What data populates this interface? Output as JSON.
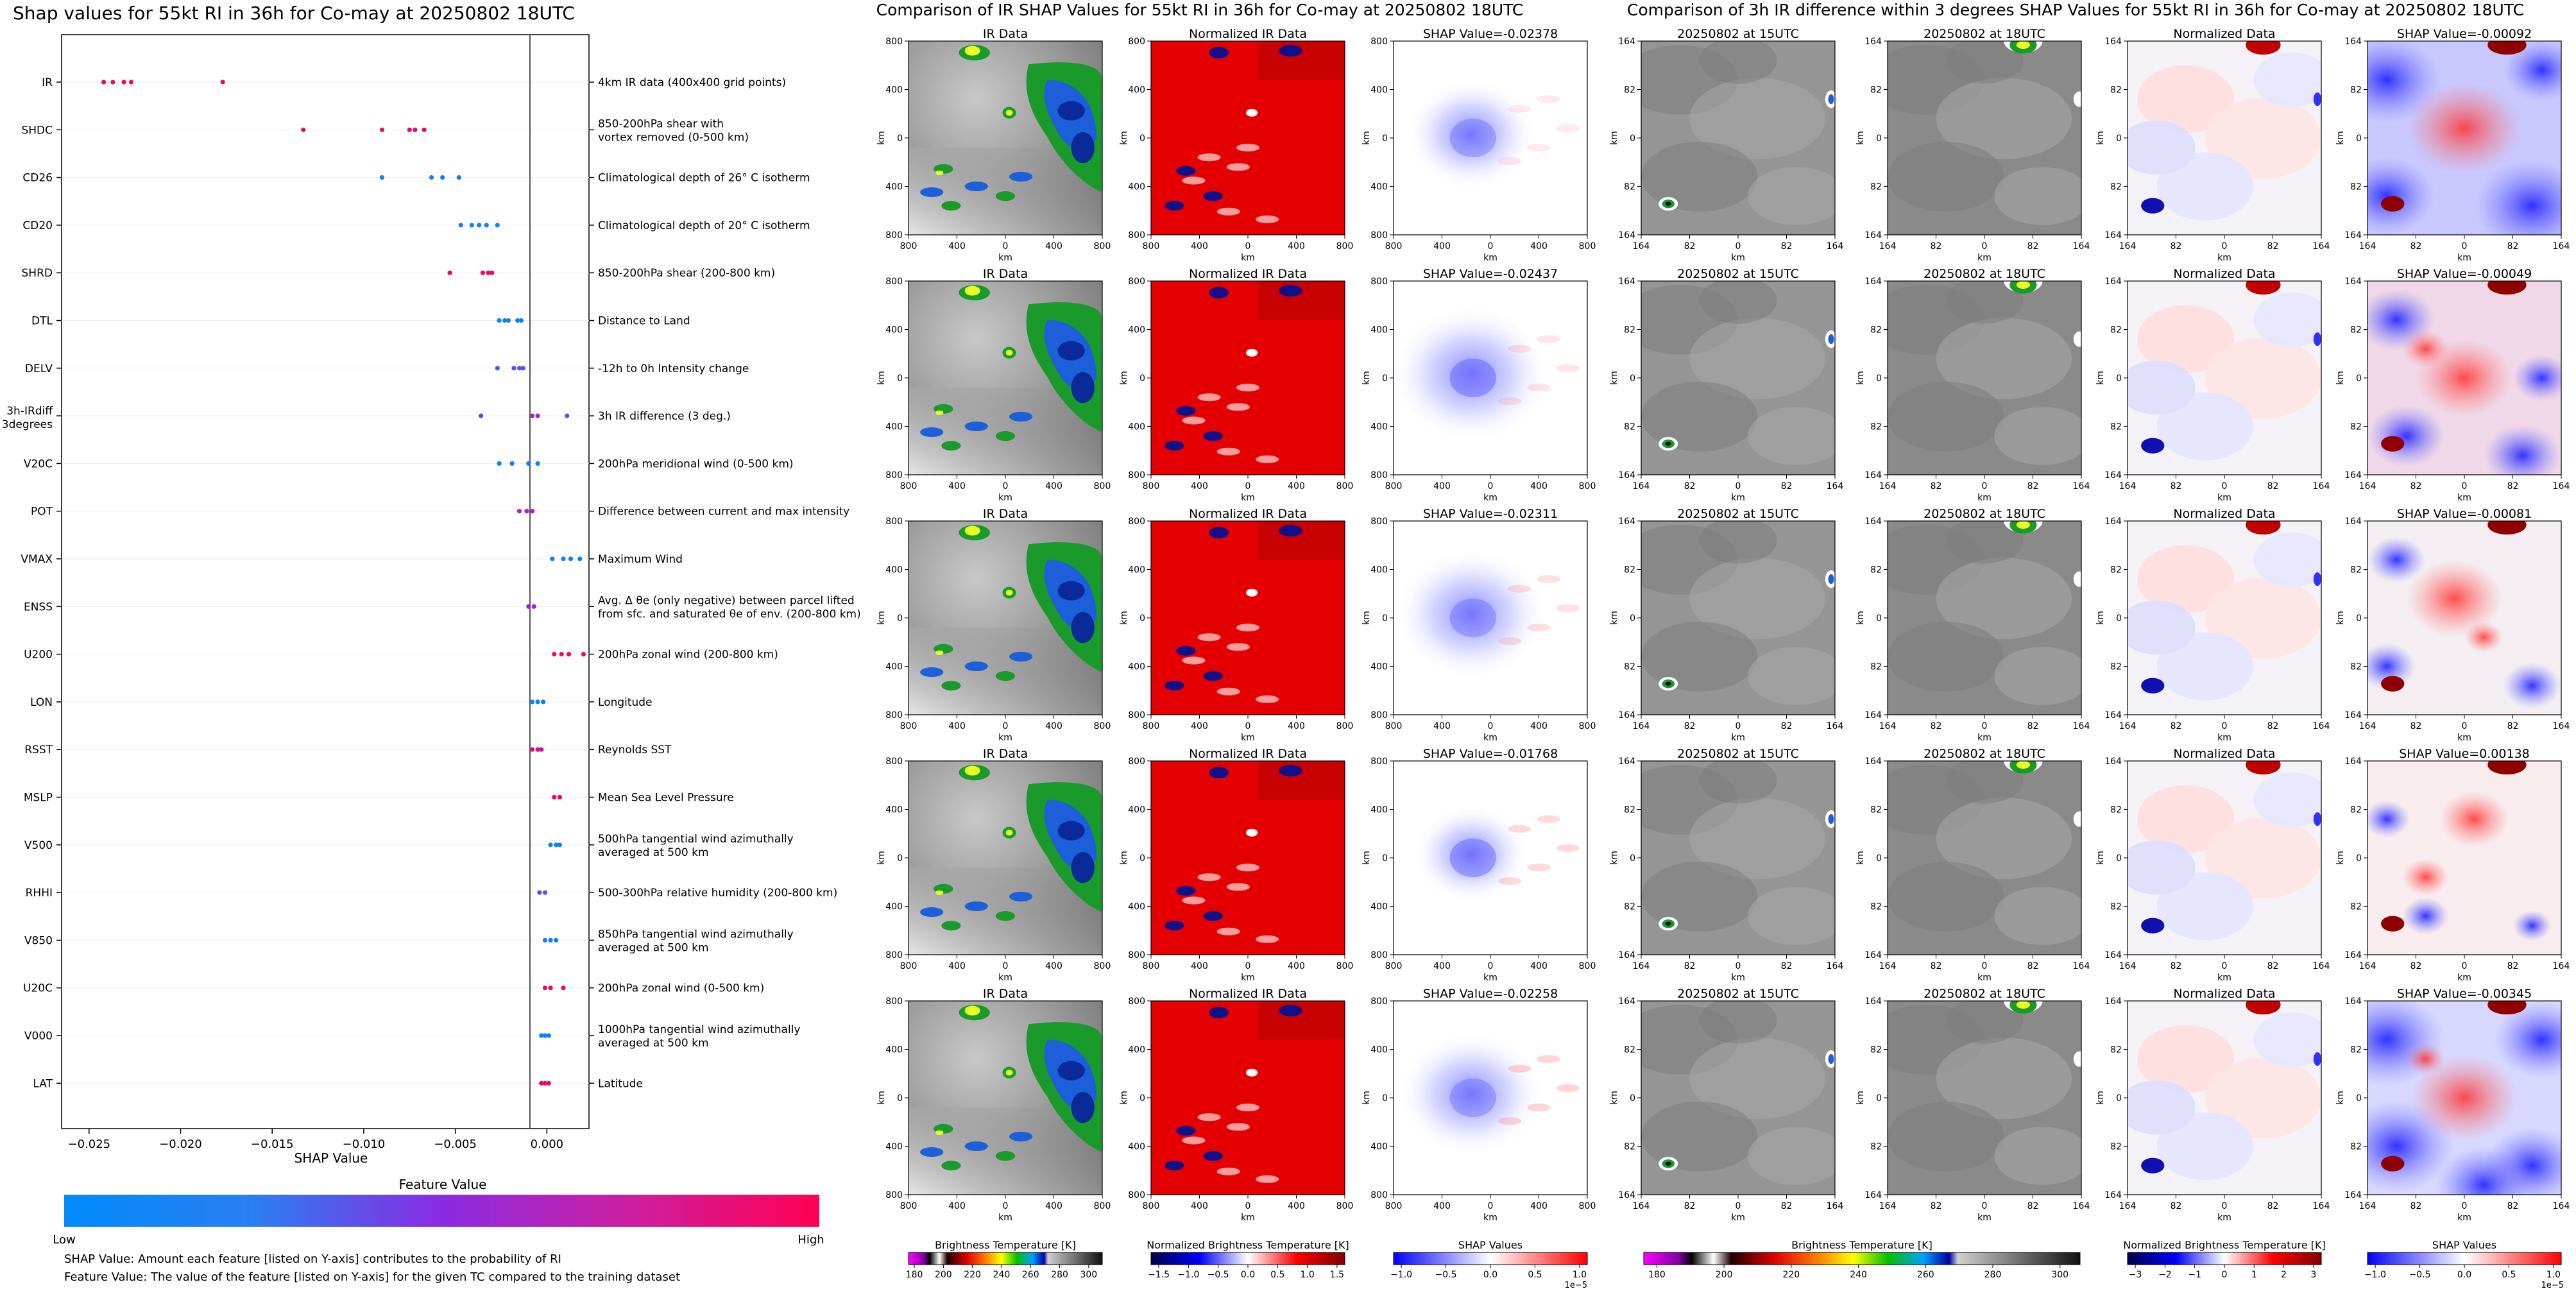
{
  "shap_summary": {
    "title": "Shap values for 55kt RI in 36h for Co-may at 20250802 18UTC",
    "xlabel": "SHAP Value",
    "xticks": [
      "−0.025",
      "−0.020",
      "−0.015",
      "−0.010",
      "−0.005",
      "0.000"
    ],
    "colorbar_title": "Feature Value",
    "colorbar_low": "Low",
    "colorbar_high": "High",
    "colors": {
      "low": "#008afb",
      "mid": "#8a2be2",
      "high": "#ff0052"
    },
    "note1": "SHAP Value: Amount each feature [listed on Y-axis] contributes to the probability of RI",
    "note2": "Feature Value: The value of the feature [listed on Y-axis] for the given TC compared to the training dataset"
  },
  "chart_data": {
    "type": "scatter",
    "title": "Shap values for 55kt RI in 36h for Co-may at 20250802 18UTC",
    "xlabel": "SHAP Value",
    "xlim": [
      -0.0265,
      0.0023
    ],
    "color_scale": "feature value (low = blue, high = pink)",
    "features": [
      {
        "name": "IR",
        "desc": [
          "4km IR data (400x400 grid points)"
        ],
        "points": [
          {
            "x": -0.0242,
            "v": 0.95
          },
          {
            "x": -0.0237,
            "v": 0.95
          },
          {
            "x": -0.0231,
            "v": 0.95
          },
          {
            "x": -0.0227,
            "v": 0.95
          },
          {
            "x": -0.0177,
            "v": 0.95
          }
        ]
      },
      {
        "name": "SHDC",
        "desc": [
          "850-200hPa shear with",
          "vortex removed (0-500 km)"
        ],
        "points": [
          {
            "x": -0.0133,
            "v": 0.95
          },
          {
            "x": -0.009,
            "v": 0.95
          },
          {
            "x": -0.0075,
            "v": 0.95
          },
          {
            "x": -0.0072,
            "v": 0.95
          },
          {
            "x": -0.0067,
            "v": 0.95
          }
        ]
      },
      {
        "name": "CD26",
        "desc": [
          "Climatological depth of 26° C isotherm"
        ],
        "points": [
          {
            "x": -0.009,
            "v": 0.05
          },
          {
            "x": -0.0063,
            "v": 0.05
          },
          {
            "x": -0.0057,
            "v": 0.05
          },
          {
            "x": -0.0048,
            "v": 0.05
          }
        ]
      },
      {
        "name": "CD20",
        "desc": [
          "Climatological depth of 20° C isotherm"
        ],
        "points": [
          {
            "x": -0.0047,
            "v": 0.05
          },
          {
            "x": -0.0041,
            "v": 0.05
          },
          {
            "x": -0.0037,
            "v": 0.05
          },
          {
            "x": -0.0033,
            "v": 0.05
          },
          {
            "x": -0.0027,
            "v": 0.05
          }
        ]
      },
      {
        "name": "SHRD",
        "desc": [
          "850-200hPa shear (200-800 km)"
        ],
        "points": [
          {
            "x": -0.0053,
            "v": 0.95
          },
          {
            "x": -0.0035,
            "v": 0.95
          },
          {
            "x": -0.0032,
            "v": 0.95
          },
          {
            "x": -0.003,
            "v": 0.95
          }
        ]
      },
      {
        "name": "DTL",
        "desc": [
          "Distance to Land"
        ],
        "points": [
          {
            "x": -0.0026,
            "v": 0.05
          },
          {
            "x": -0.0023,
            "v": 0.05
          },
          {
            "x": -0.0021,
            "v": 0.05
          },
          {
            "x": -0.0016,
            "v": 0.05
          },
          {
            "x": -0.0014,
            "v": 0.05
          }
        ]
      },
      {
        "name": "DELV",
        "desc": [
          "-12h to 0h Intensity change"
        ],
        "points": [
          {
            "x": -0.0027,
            "v": 0.25
          },
          {
            "x": -0.0018,
            "v": 0.3
          },
          {
            "x": -0.0015,
            "v": 0.3
          },
          {
            "x": -0.0013,
            "v": 0.3
          }
        ]
      },
      {
        "name": "3h-IRdiff 3degrees",
        "desc": [
          "3h IR difference (3 deg.)"
        ],
        "points": [
          {
            "x": -0.0036,
            "v": 0.4
          },
          {
            "x": -0.0008,
            "v": 0.7
          },
          {
            "x": -0.0005,
            "v": 0.5
          },
          {
            "x": 0.0011,
            "v": 0.3
          }
        ]
      },
      {
        "name": "V20C",
        "desc": [
          "200hPa meridional wind (0-500 km)"
        ],
        "points": [
          {
            "x": -0.0026,
            "v": 0.05
          },
          {
            "x": -0.0019,
            "v": 0.05
          },
          {
            "x": -0.001,
            "v": 0.05
          },
          {
            "x": -0.0005,
            "v": 0.05
          }
        ]
      },
      {
        "name": "POT",
        "desc": [
          "Difference between current and max intensity"
        ],
        "points": [
          {
            "x": -0.0015,
            "v": 0.6
          },
          {
            "x": -0.0011,
            "v": 0.6
          },
          {
            "x": -0.0008,
            "v": 0.6
          }
        ]
      },
      {
        "name": "VMAX",
        "desc": [
          "Maximum Wind"
        ],
        "points": [
          {
            "x": 0.0003,
            "v": 0.05
          },
          {
            "x": 0.0009,
            "v": 0.05
          },
          {
            "x": 0.0013,
            "v": 0.05
          },
          {
            "x": 0.0018,
            "v": 0.05
          }
        ]
      },
      {
        "name": "ENSS",
        "desc": [
          "Avg. Δ θe (only negative) between parcel lifted",
          "from sfc. and saturated θe of env. (200-800 km)"
        ],
        "points": [
          {
            "x": -0.001,
            "v": 0.6
          },
          {
            "x": -0.0007,
            "v": 0.6
          }
        ]
      },
      {
        "name": "U200",
        "desc": [
          "200hPa zonal wind (200-800 km)"
        ],
        "points": [
          {
            "x": 0.0004,
            "v": 0.95
          },
          {
            "x": 0.0008,
            "v": 0.95
          },
          {
            "x": 0.0012,
            "v": 0.95
          },
          {
            "x": 0.002,
            "v": 0.95
          }
        ]
      },
      {
        "name": "LON",
        "desc": [
          "Longitude"
        ],
        "points": [
          {
            "x": -0.0008,
            "v": 0.05
          },
          {
            "x": -0.0005,
            "v": 0.05
          },
          {
            "x": -0.0002,
            "v": 0.05
          }
        ]
      },
      {
        "name": "RSST",
        "desc": [
          "Reynolds SST"
        ],
        "points": [
          {
            "x": -0.0008,
            "v": 0.8
          },
          {
            "x": -0.0005,
            "v": 0.8
          },
          {
            "x": -0.0003,
            "v": 0.8
          }
        ]
      },
      {
        "name": "MSLP",
        "desc": [
          "Mean Sea Level Pressure"
        ],
        "points": [
          {
            "x": 0.0004,
            "v": 0.95
          },
          {
            "x": 0.0007,
            "v": 0.95
          }
        ]
      },
      {
        "name": "V500",
        "desc": [
          "500hPa tangential wind azimuthally",
          "averaged at 500 km"
        ],
        "points": [
          {
            "x": 0.0002,
            "v": 0.05
          },
          {
            "x": 0.0005,
            "v": 0.05
          },
          {
            "x": 0.0007,
            "v": 0.05
          }
        ]
      },
      {
        "name": "RHHI",
        "desc": [
          "500-300hPa relative humidity (200-800 km)"
        ],
        "points": [
          {
            "x": -0.0004,
            "v": 0.3
          },
          {
            "x": -0.0001,
            "v": 0.3
          }
        ]
      },
      {
        "name": "V850",
        "desc": [
          "850hPa tangential wind azimuthally",
          "averaged at 500 km"
        ],
        "points": [
          {
            "x": -0.0001,
            "v": 0.05
          },
          {
            "x": 0.0002,
            "v": 0.05
          },
          {
            "x": 0.0005,
            "v": 0.05
          }
        ]
      },
      {
        "name": "U20C",
        "desc": [
          "200hPa zonal wind (0-500 km)"
        ],
        "points": [
          {
            "x": -0.0001,
            "v": 0.95
          },
          {
            "x": 0.0002,
            "v": 0.95
          },
          {
            "x": 0.0009,
            "v": 0.95
          }
        ]
      },
      {
        "name": "V000",
        "desc": [
          "1000hPa tangential wind azimuthally",
          "averaged at 500 km"
        ],
        "points": [
          {
            "x": -0.0003,
            "v": 0.05
          },
          {
            "x": -0.0001,
            "v": 0.05
          },
          {
            "x": 0.0001,
            "v": 0.05
          }
        ]
      },
      {
        "name": "LAT",
        "desc": [
          "Latitude"
        ],
        "points": [
          {
            "x": -0.0003,
            "v": 0.95
          },
          {
            "x": -0.0001,
            "v": 0.95
          },
          {
            "x": 0.0001,
            "v": 0.95
          }
        ]
      }
    ]
  },
  "ir_panel": {
    "title": "Comparison of IR SHAP Values for 55kt RI in 36h for Co-may at 20250802 18UTC",
    "col_titles": [
      "IR Data",
      "Normalized IR Data"
    ],
    "shap_titles": [
      "SHAP Value=-0.02378",
      "SHAP Value=-0.02437",
      "SHAP Value=-0.02311",
      "SHAP Value=-0.01768",
      "SHAP Value=-0.02258"
    ],
    "axis_label": "km",
    "ticks": [
      "800",
      "400",
      "0",
      "400",
      "800"
    ],
    "colorbars": [
      {
        "label": "Brightness Temperature [K]",
        "ticks": [
          "180",
          "200",
          "220",
          "240",
          "260",
          "280",
          "300"
        ]
      },
      {
        "label": "Normalized Brightness Temperature [K]",
        "ticks": [
          "−1.5",
          "−1.0",
          "−0.5",
          "0.0",
          "0.5",
          "1.0",
          "1.5"
        ]
      },
      {
        "label": "SHAP Values",
        "ticks": [
          "−1.0",
          "−0.5",
          "0.0",
          "0.5",
          "1.0"
        ],
        "exponent": "1e−5"
      }
    ]
  },
  "diff_panel": {
    "title": "Comparison of 3h IR difference within 3 degrees SHAP Values for 55kt RI in 36h for Co-may at 20250802 18UTC",
    "col_titles": [
      "20250802 at 15UTC",
      "20250802 at 18UTC",
      "Normalized Data"
    ],
    "shap_titles": [
      "SHAP Value=-0.00092",
      "SHAP Value=-0.00049",
      "SHAP Value=-0.00081",
      "SHAP Value=0.00138",
      "SHAP Value=-0.00345"
    ],
    "axis_label": "km",
    "ticks": [
      "164",
      "82",
      "0",
      "82",
      "164"
    ],
    "colorbars": [
      {
        "label": "Brightness Temperature [K]",
        "ticks": [
          "180",
          "200",
          "220",
          "240",
          "260",
          "280",
          "300"
        ]
      },
      {
        "label": "Normalized Brightness Temperature [K]",
        "ticks": [
          "−3",
          "−2",
          "−1",
          "0",
          "1",
          "2",
          "3"
        ]
      },
      {
        "label": "SHAP Values",
        "ticks": [
          "−1.0",
          "−0.5",
          "0.0",
          "0.5",
          "1.0"
        ],
        "exponent": "1e−5"
      }
    ]
  }
}
